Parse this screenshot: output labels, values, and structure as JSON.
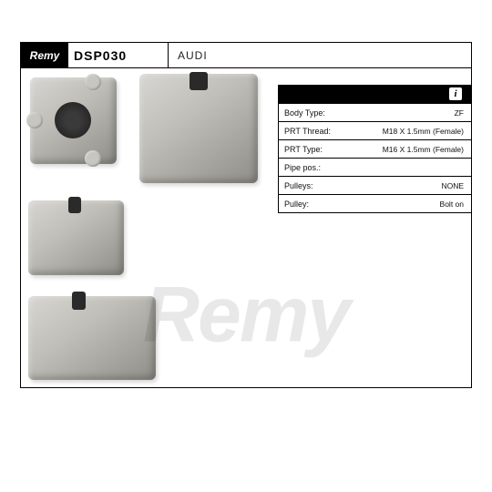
{
  "header": {
    "brand": "Remy",
    "part_number": "DSP030",
    "make": "AUDI"
  },
  "spec_panel": {
    "info_glyph": "i",
    "rows": [
      {
        "label": "Body Type:",
        "value": "ZF"
      },
      {
        "label": "PRT Thread:",
        "value": "M18 X 1.5mm (Female)"
      },
      {
        "label": "PRT Type:",
        "value": "M16 X 1.5mm (Female)"
      },
      {
        "label": "Pipe pos.:",
        "value": ""
      },
      {
        "label": "Pulleys:",
        "value": "NONE"
      },
      {
        "label": "Pulley:",
        "value": "Bolt on"
      }
    ]
  },
  "watermark": "Remy"
}
